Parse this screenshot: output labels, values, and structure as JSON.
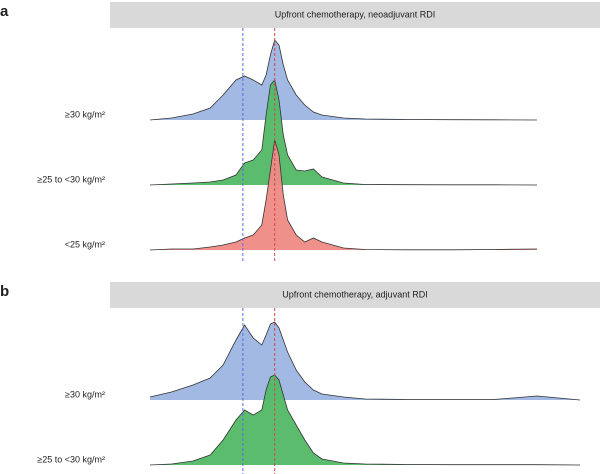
{
  "chart_data": [
    {
      "type": "ridgeline",
      "panel": "a",
      "title": "Upfront chemotherapy, neoadjuvant RDI",
      "xlim": [
        0,
        100
      ],
      "x": [
        0,
        5,
        10,
        14,
        17,
        20,
        22,
        24,
        26,
        27,
        28,
        29,
        30,
        31,
        32,
        34,
        36,
        38,
        40,
        45,
        50,
        60,
        70,
        80,
        90,
        100
      ],
      "reference_lines": [
        {
          "value": 21.6,
          "color": "#5a6ee0"
        },
        {
          "value": 29,
          "color": "#d04a4a"
        }
      ],
      "series": [
        {
          "name": "≥30 kg/m²",
          "color": "#9db5e3",
          "values": [
            0,
            2,
            6,
            12,
            25,
            40,
            44,
            40,
            35,
            45,
            65,
            80,
            75,
            55,
            40,
            25,
            15,
            8,
            5,
            2,
            1,
            0.5,
            0.3,
            0.2,
            0,
            null
          ]
        },
        {
          "name": "≥25 to <30 kg/m²",
          "color": "#52b866",
          "values": [
            0,
            1,
            2,
            3,
            5,
            10,
            22,
            25,
            35,
            70,
            100,
            105,
            85,
            50,
            30,
            15,
            14,
            16,
            8,
            2,
            0.5,
            0.3,
            0.2,
            0.2,
            0,
            null
          ]
        },
        {
          "name": "<25 kg/m²",
          "color": "#ef8a85",
          "values": [
            0,
            1,
            1,
            3,
            5,
            8,
            12,
            15,
            25,
            50,
            80,
            110,
            95,
            55,
            30,
            15,
            8,
            12,
            8,
            2,
            0.5,
            0.2,
            0.2,
            0.5,
            1,
            null
          ]
        }
      ]
    },
    {
      "type": "ridgeline",
      "panel": "b",
      "title": "Upfront chemotherapy, adjuvant RDI",
      "xlim": [
        0,
        100
      ],
      "x": [
        0,
        5,
        10,
        14,
        17,
        20,
        22,
        24,
        26,
        27,
        28,
        29,
        30,
        31,
        32,
        34,
        36,
        38,
        40,
        45,
        50,
        60,
        70,
        80,
        90,
        100
      ],
      "reference_lines": [
        {
          "value": 21.6,
          "color": "#5a6ee0"
        },
        {
          "value": 29,
          "color": "#d04a4a"
        }
      ],
      "series": [
        {
          "name": "≥30 kg/m²",
          "color": "#9db5e3",
          "values": [
            3,
            8,
            15,
            22,
            35,
            60,
            75,
            62,
            55,
            65,
            76,
            78,
            72,
            60,
            48,
            30,
            18,
            10,
            6,
            3,
            1,
            0.5,
            0.5,
            0.5,
            4,
            0
          ]
        },
        {
          "name": "≥25 to <30 kg/m²",
          "color": "#52b866",
          "values": [
            0,
            1,
            4,
            10,
            25,
            45,
            55,
            50,
            55,
            75,
            88,
            90,
            85,
            70,
            55,
            40,
            25,
            12,
            6,
            2,
            1,
            0.5,
            0.3,
            0.3,
            0.3,
            0
          ]
        }
      ]
    }
  ]
}
